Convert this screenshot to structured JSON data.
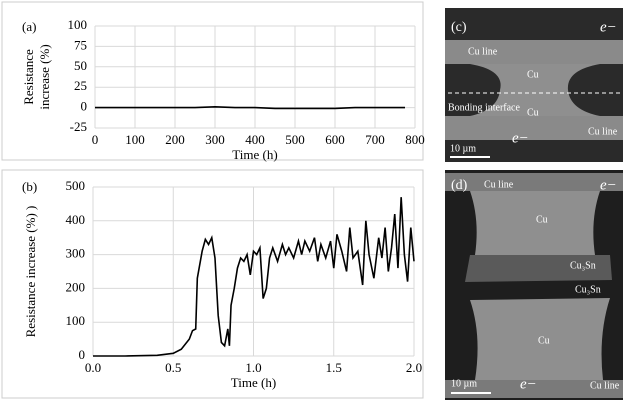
{
  "chart_data": [
    {
      "type": "line",
      "label": "(a)",
      "xlabel": "Time (h)",
      "ylabel": [
        "Resistance",
        "increase (%)"
      ],
      "x": [
        0,
        50,
        100,
        150,
        200,
        250,
        300,
        350,
        400,
        450,
        500,
        550,
        600,
        650,
        700,
        775
      ],
      "series": [
        {
          "color": "#000000",
          "values": [
            0,
            0,
            0,
            0,
            0,
            0,
            1,
            0,
            0,
            -1,
            -1,
            -1,
            -1,
            0,
            0,
            0
          ]
        }
      ],
      "xlim": [
        0,
        800
      ],
      "xticks": [
        0,
        100,
        200,
        300,
        400,
        500,
        600,
        700,
        800
      ],
      "ylim": [
        -25,
        100
      ],
      "yticks": [
        -25,
        0,
        25,
        50,
        75,
        100
      ],
      "grid": true
    },
    {
      "type": "line",
      "label": "(b)",
      "xlabel": "Time (h)",
      "ylabel": [
        "Resistance increase  (%) )"
      ],
      "x": [
        0,
        0.2,
        0.4,
        0.5,
        0.55,
        0.6,
        0.62,
        0.64,
        0.65,
        0.68,
        0.7,
        0.72,
        0.74,
        0.76,
        0.78,
        0.8,
        0.82,
        0.84,
        0.85,
        0.86,
        0.88,
        0.9,
        0.92,
        0.94,
        0.96,
        0.98,
        1.0,
        1.02,
        1.04,
        1.06,
        1.08,
        1.1,
        1.12,
        1.15,
        1.18,
        1.2,
        1.22,
        1.25,
        1.28,
        1.3,
        1.32,
        1.35,
        1.38,
        1.4,
        1.42,
        1.45,
        1.48,
        1.5,
        1.52,
        1.55,
        1.58,
        1.6,
        1.62,
        1.65,
        1.68,
        1.7,
        1.72,
        1.75,
        1.78,
        1.8,
        1.82,
        1.84,
        1.86,
        1.88,
        1.9,
        1.92,
        1.94,
        1.96,
        1.98,
        2.0
      ],
      "series": [
        {
          "color": "#000000",
          "values": [
            0,
            0,
            2,
            8,
            20,
            50,
            75,
            80,
            230,
            310,
            345,
            330,
            350,
            290,
            120,
            40,
            30,
            80,
            30,
            150,
            200,
            260,
            290,
            280,
            300,
            240,
            310,
            300,
            320,
            170,
            200,
            290,
            320,
            280,
            330,
            300,
            320,
            290,
            340,
            300,
            340,
            310,
            350,
            280,
            330,
            290,
            340,
            260,
            360,
            310,
            250,
            380,
            290,
            310,
            210,
            400,
            300,
            230,
            350,
            290,
            380,
            250,
            320,
            420,
            260,
            470,
            300,
            220,
            380,
            280
          ]
        }
      ],
      "xlim": [
        0,
        2
      ],
      "xticks": [
        {
          "value": 0,
          "label": "0.0"
        },
        {
          "value": 0.5,
          "label": "0.5"
        },
        {
          "value": 1,
          "label": "1.0"
        },
        {
          "value": 1.5,
          "label": "1.5"
        },
        {
          "value": 2,
          "label": "2.0"
        }
      ],
      "ylim": [
        0,
        500
      ],
      "yticks": [
        0,
        100,
        200,
        300,
        400,
        500
      ],
      "grid": true
    }
  ],
  "images": [
    {
      "labels": [
        "(c)",
        "Cu line",
        "e−",
        "Cu",
        "Cu",
        "Bonding interface",
        "Cu line",
        "e−",
        "10 µm"
      ]
    },
    {
      "labels": [
        "(d)",
        "Cu line",
        "e−",
        "Cu",
        "Cu₃Sn",
        "Cu₃Sn",
        "Cu",
        "10 µm",
        "e−",
        "Cu line"
      ]
    }
  ]
}
